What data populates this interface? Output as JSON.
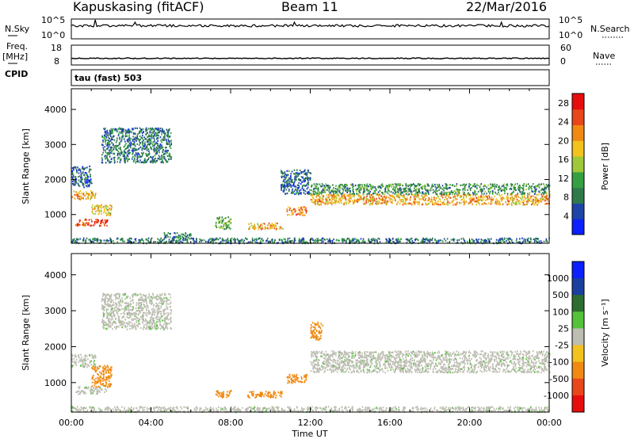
{
  "header": {
    "station": "Kapuskasing (fitACF)",
    "beam": "Beam 11",
    "date": "22/Mar/2016"
  },
  "aux_panel": {
    "left": {
      "label_top": "N.Sky",
      "label_mid": "Freq.",
      "label_mid_unit": "[MHz]",
      "label_bottom": "CPID",
      "ticks_noise": [
        "10^5",
        "10^0"
      ],
      "ticks_freq": [
        "18",
        "8"
      ]
    },
    "right": {
      "label_top": "N.Search",
      "label_mid": "Nave",
      "ticks_noise": [
        "10^5",
        "10^0"
      ],
      "ticks_nave": [
        "60",
        "0"
      ]
    },
    "cpid_text": "tau (fast) 503"
  },
  "colors": {
    "power": [
      "#0a20ff",
      "#1f44a8",
      "#2f7a4a",
      "#34a03f",
      "#9fc83a",
      "#f2c21f",
      "#f08a12",
      "#e8471c",
      "#e80d0d"
    ],
    "velocity": [
      "#0a20ff",
      "#1a3f9e",
      "#2d6d2f",
      "#54c23a",
      "#bdbdb2",
      "#f2c21f",
      "#f08a12",
      "#e8471c",
      "#e80d0d"
    ]
  },
  "chart_data": [
    {
      "type": "heatmap",
      "name": "power",
      "ylabel": "Slant Range [km]",
      "xlabel": "Time UT",
      "x_ticks": [
        "00:00",
        "04:00",
        "08:00",
        "12:00",
        "16:00",
        "20:00",
        "00:00"
      ],
      "y_ticks": [
        1000,
        2000,
        3000,
        4000
      ],
      "xlim_hours": [
        0,
        24
      ],
      "ylim_km": [
        180,
        4590
      ],
      "colorbar": {
        "label": "Power [dB]",
        "ticks": [
          4,
          8,
          12,
          16,
          20,
          24,
          28
        ],
        "range": [
          0,
          30
        ]
      },
      "regions": [
        {
          "t": [
            0.0,
            1.2
          ],
          "r": [
            1450,
            1700
          ],
          "level": 20
        },
        {
          "t": [
            0.2,
            1.8
          ],
          "r": [
            700,
            900
          ],
          "level": 26
        },
        {
          "t": [
            1.0,
            2.0
          ],
          "r": [
            1000,
            1300
          ],
          "level": 18
        },
        {
          "t": [
            1.5,
            5.0
          ],
          "r": [
            2500,
            3500
          ],
          "level": 8
        },
        {
          "t": [
            0.0,
            1.0
          ],
          "r": [
            1800,
            2400
          ],
          "level": 6
        },
        {
          "t": [
            4.5,
            6.0
          ],
          "r": [
            350,
            500
          ],
          "level": 8
        },
        {
          "t": [
            7.2,
            8.0
          ],
          "r": [
            600,
            950
          ],
          "level": 12
        },
        {
          "t": [
            8.8,
            10.6
          ],
          "r": [
            600,
            780
          ],
          "level": 20
        },
        {
          "t": [
            10.8,
            11.8
          ],
          "r": [
            1000,
            1250
          ],
          "level": 22
        },
        {
          "t": [
            12.0,
            24.0
          ],
          "r": [
            1300,
            1600
          ],
          "level": 20
        },
        {
          "t": [
            12.0,
            24.0
          ],
          "r": [
            1600,
            1900
          ],
          "level": 10
        },
        {
          "t": [
            10.5,
            12.0
          ],
          "r": [
            1600,
            2300
          ],
          "level": 6
        },
        {
          "t": [
            0.0,
            24.0
          ],
          "r": [
            200,
            350
          ],
          "level": 8
        }
      ]
    },
    {
      "type": "heatmap",
      "name": "velocity",
      "ylabel": "Slant Range [km]",
      "xlabel": "Time UT",
      "x_ticks": [
        "00:00",
        "04:00",
        "08:00",
        "12:00",
        "16:00",
        "20:00",
        "00:00"
      ],
      "y_ticks": [
        1000,
        2000,
        3000,
        4000
      ],
      "xlim_hours": [
        0,
        24
      ],
      "ylim_km": [
        180,
        4590
      ],
      "colorbar": {
        "label": "Velocity [m s⁻¹]",
        "ticks": [
          1000,
          500,
          100,
          25,
          -25,
          -100,
          -500,
          -1000
        ]
      },
      "regions": [
        {
          "t": [
            0.0,
            1.2
          ],
          "r": [
            1450,
            1800
          ],
          "level": "ground"
        },
        {
          "t": [
            0.2,
            1.8
          ],
          "r": [
            700,
            900
          ],
          "level": "ground"
        },
        {
          "t": [
            1.0,
            2.0
          ],
          "r": [
            900,
            1500
          ],
          "level": -100
        },
        {
          "t": [
            1.5,
            5.0
          ],
          "r": [
            2500,
            3500
          ],
          "level": "ground"
        },
        {
          "t": [
            7.2,
            8.0
          ],
          "r": [
            600,
            800
          ],
          "level": -100
        },
        {
          "t": [
            8.8,
            10.6
          ],
          "r": [
            600,
            780
          ],
          "level": -100
        },
        {
          "t": [
            10.8,
            11.8
          ],
          "r": [
            1000,
            1250
          ],
          "level": -100
        },
        {
          "t": [
            12.0,
            24.0
          ],
          "r": [
            1300,
            1900
          ],
          "level": "ground"
        },
        {
          "t": [
            12.0,
            12.6
          ],
          "r": [
            2200,
            2700
          ],
          "level": -100
        },
        {
          "t": [
            0.0,
            24.0
          ],
          "r": [
            200,
            350
          ],
          "level": "ground"
        }
      ]
    }
  ],
  "time_axis_label": "Time UT"
}
